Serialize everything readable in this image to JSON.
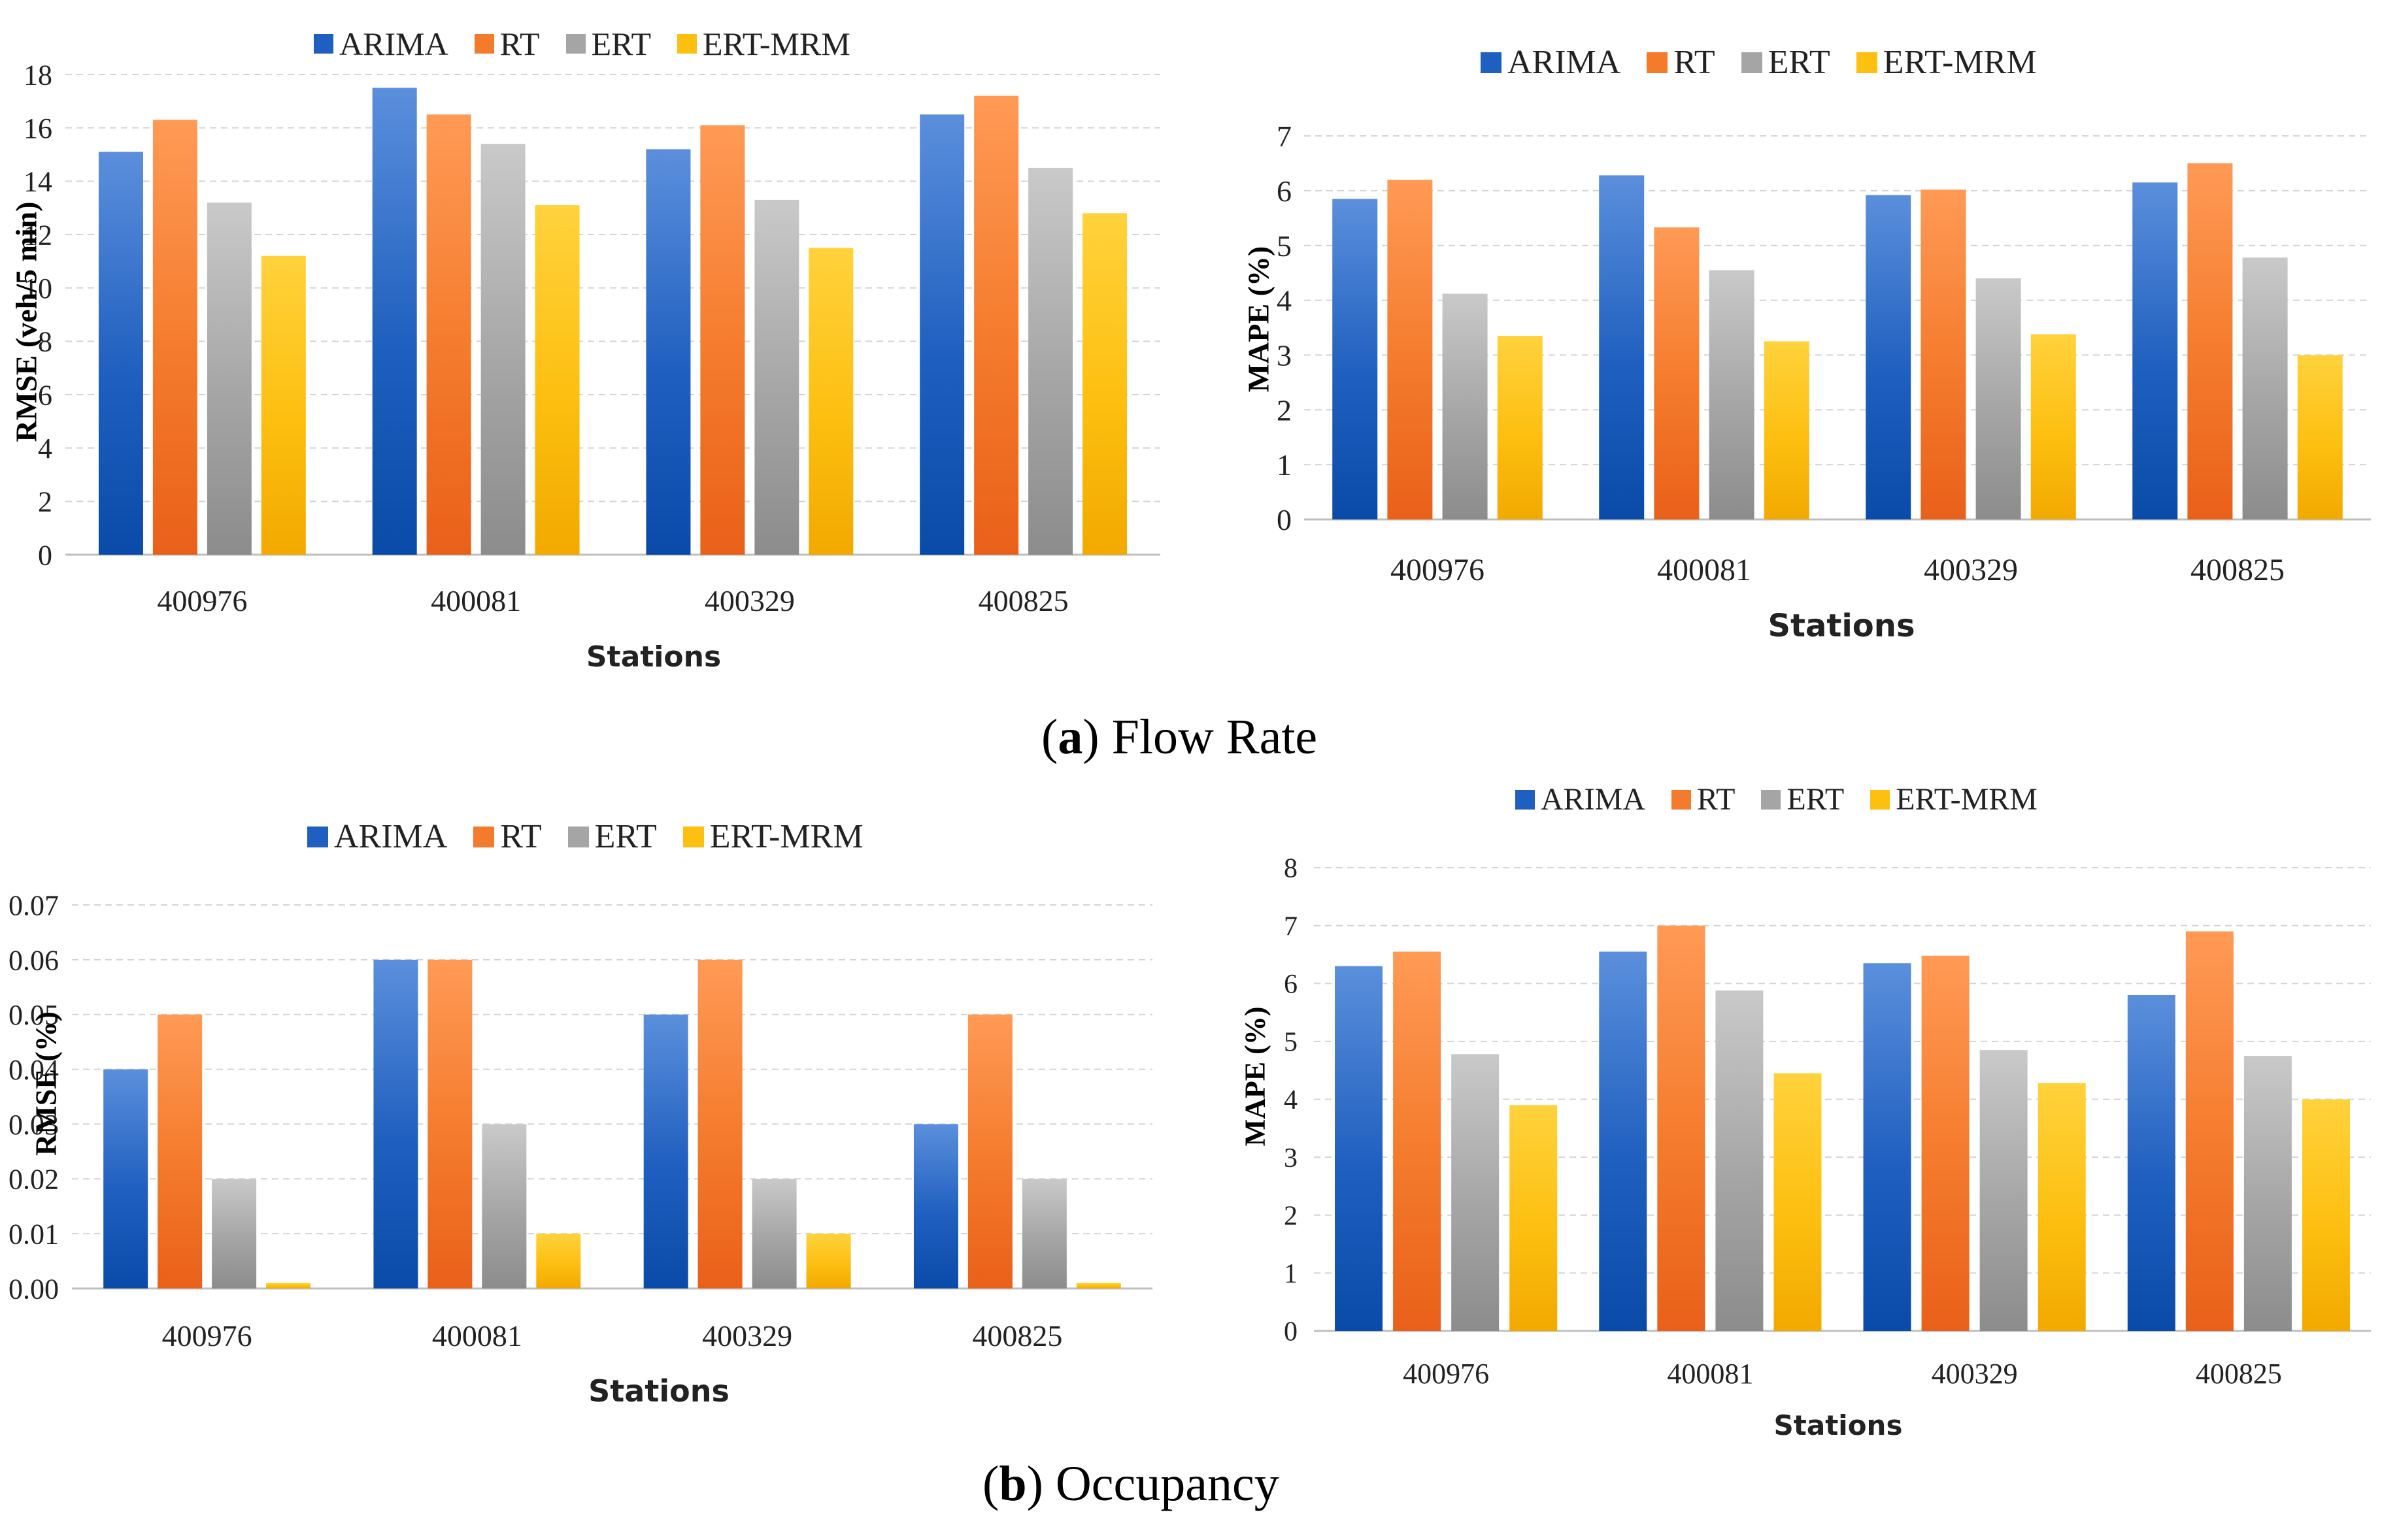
{
  "colors": {
    "ARIMA": [
      "#5b8fdc",
      "#1f5fbf",
      "#0a4aa8"
    ],
    "RT": [
      "#ff9a55",
      "#f47a2c",
      "#e9601a"
    ],
    "ERT": [
      "#c9c9c9",
      "#a5a5a5",
      "#8c8c8c"
    ],
    "ERT-MRM": [
      "#ffd23c",
      "#fdbf10",
      "#f2a900"
    ],
    "grid": "#d4d4d4",
    "axis": "#bfbfbf"
  },
  "captions": {
    "a": {
      "letter": "a",
      "text": " Flow Rate",
      "open": "(",
      "close": ")"
    },
    "b": {
      "letter": "b",
      "text": " Occupancy",
      "open": "(",
      "close": ")"
    }
  },
  "chart_data": [
    {
      "id": "flow-rmse",
      "type": "bar",
      "title": "",
      "xlabel": "Stations",
      "ylabel": "RMSE (veh/5 min)",
      "categories": [
        "400976",
        "400081",
        "400329",
        "400825"
      ],
      "ylim": [
        0,
        18
      ],
      "yticks": [
        "0",
        "2",
        "4",
        "6",
        "8",
        "10",
        "12",
        "14",
        "16",
        "18"
      ],
      "ytick_values": [
        0,
        2,
        4,
        6,
        8,
        10,
        12,
        14,
        16,
        18
      ],
      "legend": [
        "ARIMA",
        "RT",
        "ERT",
        "ERT-MRM"
      ],
      "series": [
        {
          "name": "ARIMA",
          "values": [
            15.1,
            17.5,
            15.2,
            16.5
          ]
        },
        {
          "name": "RT",
          "values": [
            16.3,
            16.5,
            16.1,
            17.2
          ]
        },
        {
          "name": "ERT",
          "values": [
            13.2,
            15.4,
            13.3,
            14.5
          ]
        },
        {
          "name": "ERT-MRM",
          "values": [
            11.2,
            13.1,
            11.5,
            12.8
          ]
        }
      ]
    },
    {
      "id": "flow-mape",
      "type": "bar",
      "title": "",
      "xlabel": "Stations",
      "ylabel": "MAPE (%)",
      "categories": [
        "400976",
        "400081",
        "400329",
        "400825"
      ],
      "ylim": [
        0,
        7
      ],
      "yticks": [
        "0",
        "1",
        "2",
        "3",
        "4",
        "5",
        "6",
        "7"
      ],
      "ytick_values": [
        0,
        1,
        2,
        3,
        4,
        5,
        6,
        7
      ],
      "legend": [
        "ARIMA",
        "RT",
        "ERT",
        "ERT-MRM"
      ],
      "series": [
        {
          "name": "ARIMA",
          "values": [
            5.85,
            6.28,
            5.92,
            6.15
          ]
        },
        {
          "name": "RT",
          "values": [
            6.2,
            5.33,
            6.02,
            6.5
          ]
        },
        {
          "name": "ERT",
          "values": [
            4.12,
            4.55,
            4.4,
            4.78
          ]
        },
        {
          "name": "ERT-MRM",
          "values": [
            3.35,
            3.25,
            3.38,
            3.0
          ]
        }
      ]
    },
    {
      "id": "occ-rmse",
      "type": "bar",
      "title": "",
      "xlabel": "Stations",
      "ylabel": "RMSE (%)",
      "categories": [
        "400976",
        "400081",
        "400329",
        "400825"
      ],
      "ylim": [
        0,
        0.07
      ],
      "yticks": [
        "0.00",
        "0.01",
        "0.02",
        "0.03",
        "0.04",
        "0.05",
        "0.06",
        "0.07"
      ],
      "ytick_values": [
        0,
        0.01,
        0.02,
        0.03,
        0.04,
        0.05,
        0.06,
        0.07
      ],
      "legend": [
        "ARIMA",
        "RT",
        "ERT",
        "ERT-MRM"
      ],
      "series": [
        {
          "name": "ARIMA",
          "values": [
            0.04,
            0.06,
            0.05,
            0.03
          ]
        },
        {
          "name": "RT",
          "values": [
            0.05,
            0.06,
            0.06,
            0.05
          ]
        },
        {
          "name": "ERT",
          "values": [
            0.02,
            0.03,
            0.02,
            0.02
          ]
        },
        {
          "name": "ERT-MRM",
          "values": [
            0.001,
            0.01,
            0.01,
            0.001
          ]
        }
      ]
    },
    {
      "id": "occ-mape",
      "type": "bar",
      "title": "",
      "xlabel": "Stations",
      "ylabel": "MAPE (%)",
      "categories": [
        "400976",
        "400081",
        "400329",
        "400825"
      ],
      "ylim": [
        0,
        8
      ],
      "yticks": [
        "0",
        "1",
        "2",
        "3",
        "4",
        "5",
        "6",
        "7",
        "8"
      ],
      "ytick_values": [
        0,
        1,
        2,
        3,
        4,
        5,
        6,
        7,
        8
      ],
      "legend": [
        "ARIMA",
        "RT",
        "ERT",
        "ERT-MRM"
      ],
      "series": [
        {
          "name": "ARIMA",
          "values": [
            6.3,
            6.55,
            6.35,
            5.8
          ]
        },
        {
          "name": "RT",
          "values": [
            6.55,
            7.0,
            6.48,
            6.9
          ]
        },
        {
          "name": "ERT",
          "values": [
            4.78,
            5.88,
            4.85,
            4.75
          ]
        },
        {
          "name": "ERT-MRM",
          "values": [
            3.9,
            4.45,
            4.28,
            4.0
          ]
        }
      ]
    }
  ]
}
